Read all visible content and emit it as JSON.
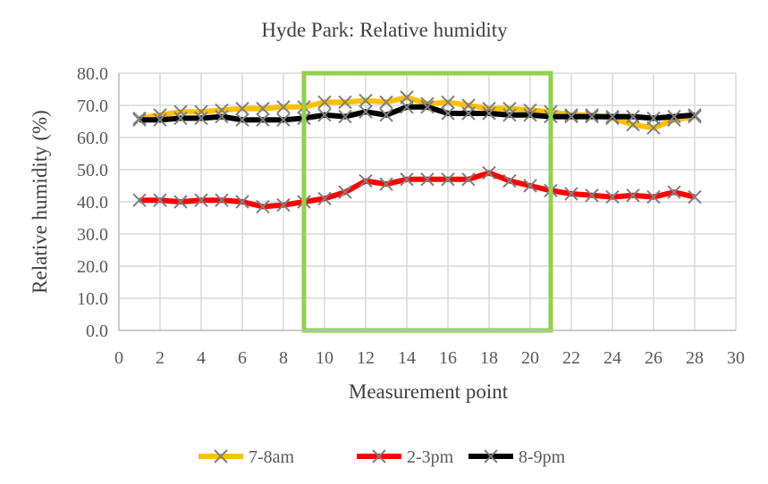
{
  "chart_data": {
    "type": "line",
    "title": "Hyde Park: Relative humidity",
    "xlabel": "Measurement point",
    "ylabel": "Relative humidity (%)",
    "xlim": [
      0,
      30
    ],
    "ylim": [
      0,
      80
    ],
    "xticks": [
      0,
      2,
      4,
      6,
      8,
      10,
      12,
      14,
      16,
      18,
      20,
      22,
      24,
      26,
      28,
      30
    ],
    "yticks": [
      "0.0",
      "10.0",
      "20.0",
      "30.0",
      "40.0",
      "50.0",
      "60.0",
      "70.0",
      "80.0"
    ],
    "grid": true,
    "legend": "bottom",
    "x": [
      1,
      2,
      3,
      4,
      5,
      6,
      7,
      8,
      9,
      10,
      11,
      12,
      13,
      14,
      15,
      16,
      17,
      18,
      19,
      20,
      21,
      22,
      23,
      24,
      25,
      26,
      27,
      28
    ],
    "series": [
      {
        "name": "7-8am",
        "color": "#FFC000",
        "values": [
          66,
          67,
          68,
          68,
          68.5,
          69,
          69,
          69.5,
          69.5,
          71,
          71,
          71.5,
          71,
          72.5,
          70.5,
          71,
          70,
          69,
          69,
          68.5,
          68,
          67,
          67,
          66,
          64,
          63,
          65.5,
          66.5
        ]
      },
      {
        "name": "2-3pm",
        "color": "#FF0000",
        "values": [
          40.5,
          40.5,
          40,
          40.5,
          40.5,
          40,
          38.5,
          39,
          40,
          41,
          43,
          46.5,
          45.5,
          47,
          47,
          47,
          47,
          49,
          46.5,
          45,
          43.5,
          42.5,
          42,
          41.5,
          42,
          41.5,
          43,
          41.5
        ]
      },
      {
        "name": "8-9pm",
        "color": "#000000",
        "values": [
          65.5,
          65.5,
          66,
          66,
          66.5,
          65.5,
          65.5,
          65.5,
          66,
          67,
          66.5,
          68,
          67,
          69.5,
          69.5,
          67.5,
          67.5,
          67.5,
          67,
          67,
          66.5,
          66.5,
          66.5,
          66.5,
          66.5,
          66,
          66.5,
          67
        ]
      }
    ],
    "marker_color": "#7F7F7F",
    "highlight_box": {
      "x_range": [
        9,
        21
      ],
      "y_range": [
        0,
        80
      ],
      "color": "#92D050"
    }
  }
}
